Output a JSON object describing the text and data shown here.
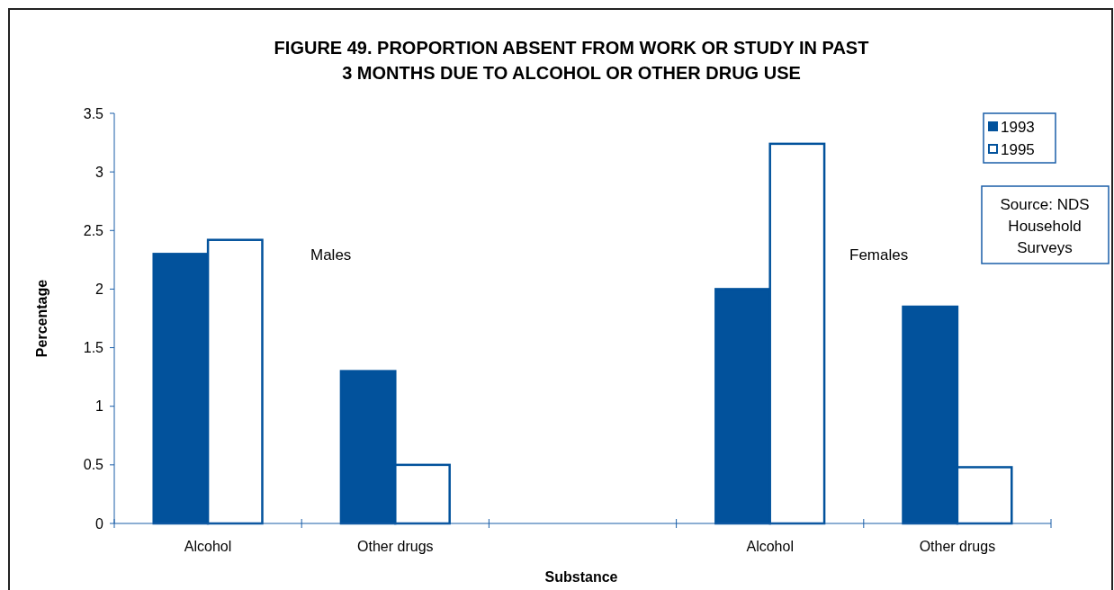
{
  "chart_data": {
    "type": "bar",
    "title": "FIGURE 49. PROPORTION ABSENT FROM WORK OR STUDY IN PAST\n3 MONTHS DUE TO ALCOHOL OR OTHER DRUG USE",
    "xlabel": "Substance",
    "ylabel": "Percentage",
    "categories": [
      "Alcohol",
      "Other drugs",
      null,
      "Alcohol",
      "Other drugs"
    ],
    "series": [
      {
        "name": "1993",
        "color": "#02529c",
        "values": [
          2.3,
          1.3,
          null,
          2.0,
          1.85
        ]
      },
      {
        "name": "1995",
        "color": "#ffffff",
        "values": [
          2.42,
          0.5,
          null,
          3.24,
          0.48
        ]
      }
    ],
    "ylim": [
      0,
      3.5
    ],
    "yticks": [
      0,
      0.5,
      1,
      1.5,
      2,
      2.5,
      3,
      3.5
    ],
    "grid": false,
    "legend": "top right",
    "annotations": [
      "Males",
      "Females",
      "Source: NDS\nHousehold\nSurveys"
    ]
  }
}
